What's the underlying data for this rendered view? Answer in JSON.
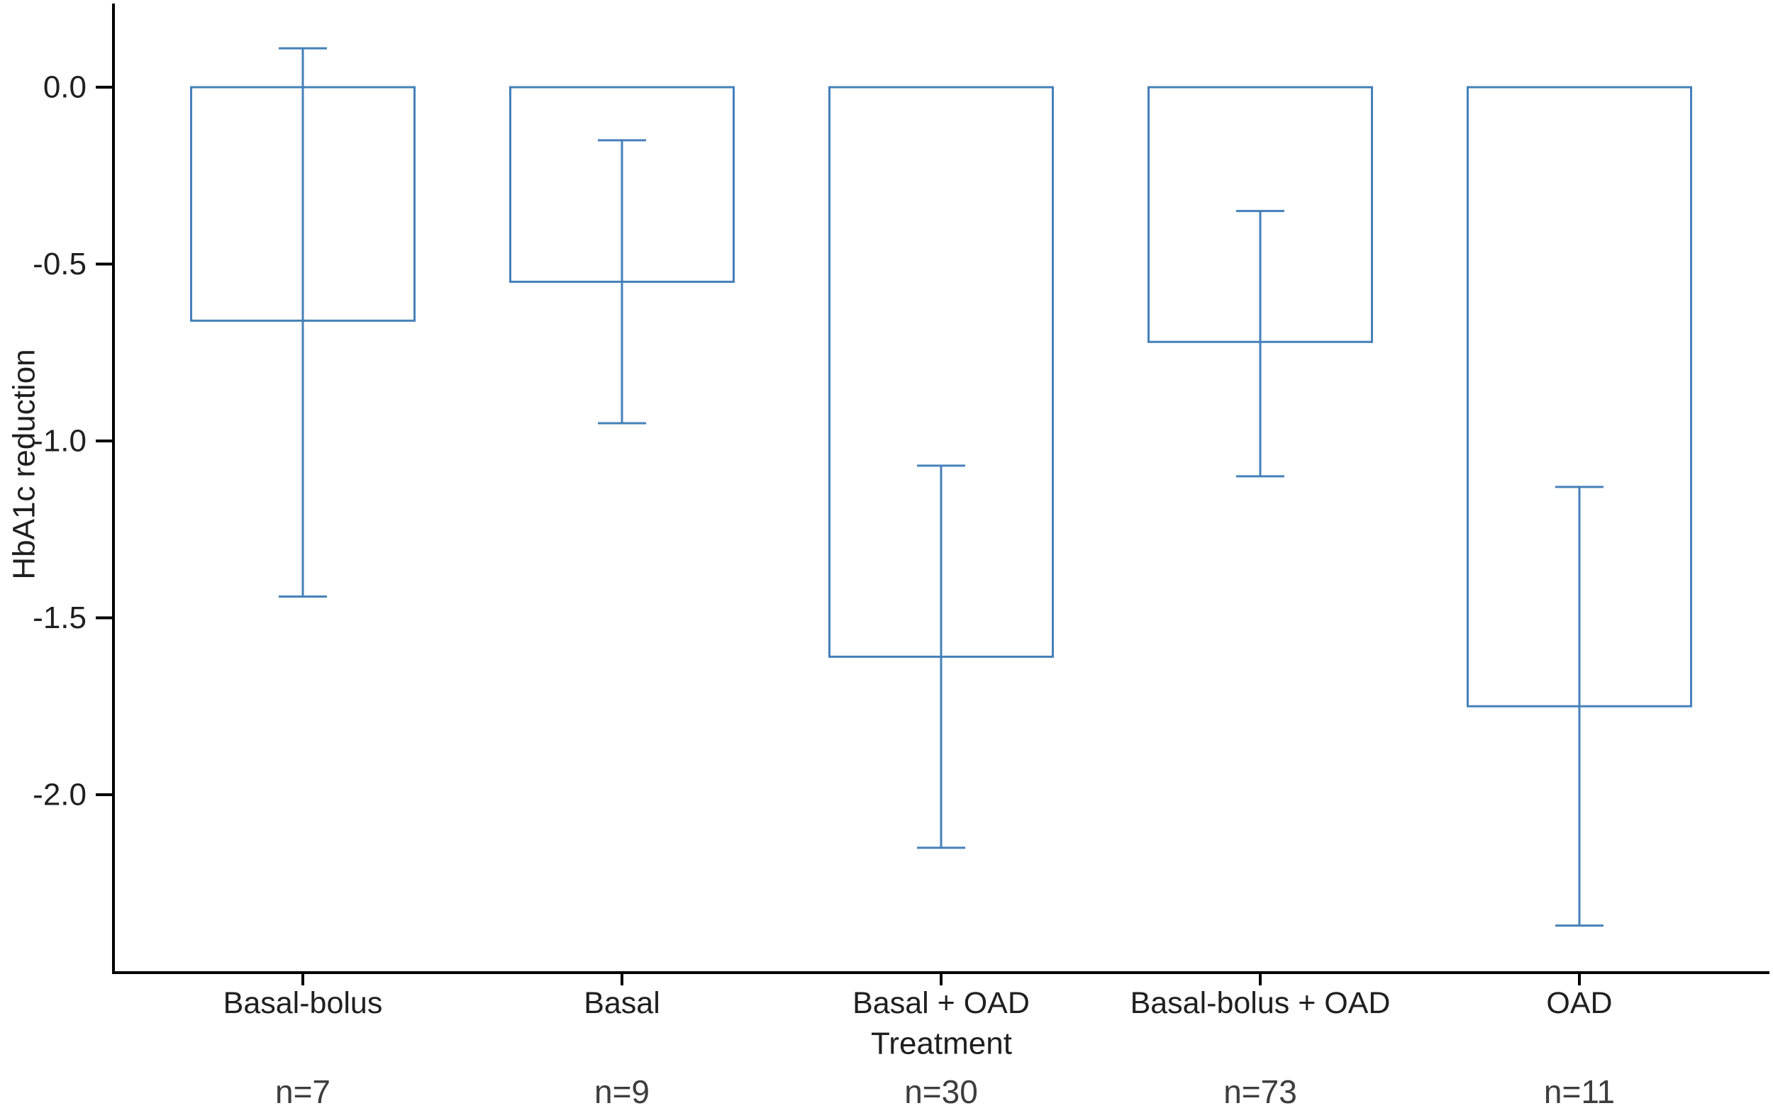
{
  "chart_data": {
    "type": "bar",
    "title": "",
    "xlabel": "Treatment",
    "ylabel": "HbA1c reduction",
    "categories": [
      "Basal-bolus",
      "Basal",
      "Basal + OAD",
      "Basal-bolus + OAD",
      "OAD"
    ],
    "series": [
      {
        "name": "HbA1c reduction",
        "values": [
          -0.66,
          -0.55,
          -1.61,
          -0.72,
          -1.75
        ],
        "error_upper": [
          0.11,
          -0.15,
          -1.07,
          -0.35,
          -1.13
        ],
        "error_lower": [
          -1.44,
          -0.95,
          -2.15,
          -1.1,
          -2.37
        ]
      }
    ],
    "n_labels": [
      "n=7",
      "n=9",
      "n=30",
      "n=73",
      "n=11"
    ],
    "yticks": [
      {
        "value": 0.0,
        "label": "0.0"
      },
      {
        "value": -0.5,
        "label": "-0.5"
      },
      {
        "value": -1.0,
        "label": "-1.0"
      },
      {
        "value": -1.5,
        "label": "-1.5"
      },
      {
        "value": -2.0,
        "label": "-2.0"
      }
    ],
    "ylim": [
      0.24,
      -2.5
    ],
    "grid": false,
    "legend_position": "none",
    "bar_baseline": 0,
    "colors": {
      "bar_outline": "#4580ba",
      "bar_fill": "none",
      "error_bar": "#4580ba",
      "axis_line": "#000000",
      "tick_label": "#1f1f1f",
      "category_label": "#1f1f1f",
      "axis_title": "#1f1f1f",
      "n_label": "#3d3d3d",
      "background": "#ffffff"
    }
  }
}
